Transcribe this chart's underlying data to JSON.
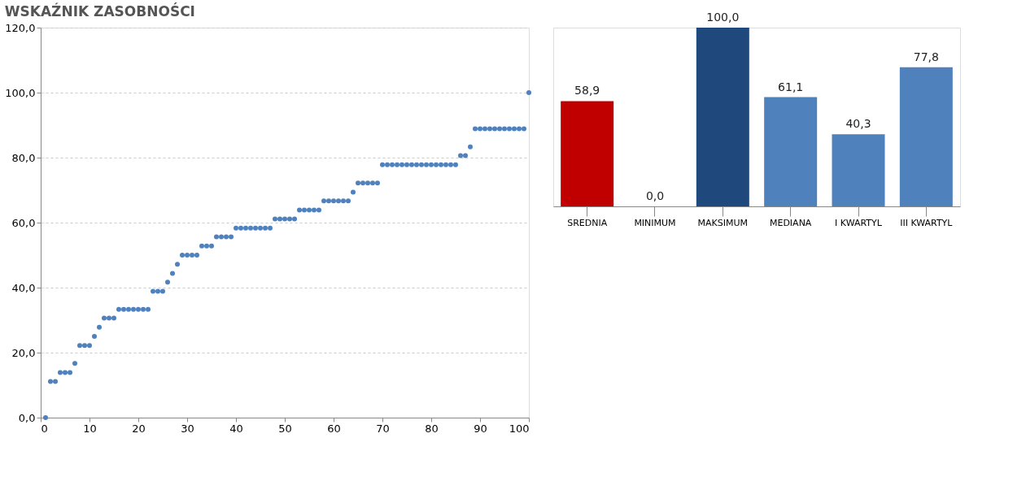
{
  "chart_data": [
    {
      "type": "scatter",
      "title": "WSKAŹNIK ZASOBNOŚCI",
      "marker": "circle",
      "grid": "y",
      "series": [
        {
          "color": "#4f81bd",
          "x": [
            1,
            2,
            3,
            4,
            5,
            6,
            7,
            8,
            9,
            10,
            11,
            12,
            13,
            14,
            15,
            16,
            17,
            18,
            19,
            20,
            21,
            22,
            23,
            24,
            25,
            26,
            27,
            28,
            29,
            30,
            31,
            32,
            33,
            34,
            35,
            36,
            37,
            38,
            39,
            40,
            41,
            42,
            43,
            44,
            45,
            46,
            47,
            48,
            49,
            50,
            51,
            52,
            53,
            54,
            55,
            56,
            57,
            58,
            59,
            60,
            61,
            62,
            63,
            64,
            65,
            66,
            67,
            68,
            69,
            70,
            71,
            72,
            73,
            74,
            75,
            76,
            77,
            78,
            79,
            80,
            81,
            82,
            83,
            84,
            85,
            86,
            87,
            88,
            89,
            90,
            91,
            92,
            93,
            94,
            95,
            96,
            97,
            98,
            99,
            100
          ],
          "values": [
            0,
            11.1,
            11.1,
            13.9,
            13.9,
            13.9,
            16.7,
            22.2,
            22.2,
            22.2,
            25.0,
            27.8,
            30.6,
            30.6,
            30.6,
            33.3,
            33.3,
            33.3,
            33.3,
            33.3,
            33.3,
            33.3,
            38.9,
            38.9,
            38.9,
            41.7,
            44.4,
            47.2,
            50.0,
            50.0,
            50.0,
            50.0,
            52.8,
            52.8,
            52.8,
            55.6,
            55.6,
            55.6,
            55.6,
            58.3,
            58.3,
            58.3,
            58.3,
            58.3,
            58.3,
            58.3,
            58.3,
            61.1,
            61.1,
            61.1,
            61.1,
            61.1,
            63.9,
            63.9,
            63.9,
            63.9,
            63.9,
            66.7,
            66.7,
            66.7,
            66.7,
            66.7,
            66.7,
            69.4,
            72.2,
            72.2,
            72.2,
            72.2,
            72.2,
            77.8,
            77.8,
            77.8,
            77.8,
            77.8,
            77.8,
            77.8,
            77.8,
            77.8,
            77.8,
            77.8,
            77.8,
            77.8,
            77.8,
            77.8,
            77.8,
            80.6,
            80.6,
            83.3,
            88.9,
            88.9,
            88.9,
            88.9,
            88.9,
            88.9,
            88.9,
            88.9,
            88.9,
            88.9,
            88.9,
            100
          ]
        }
      ],
      "xlim": [
        0,
        100
      ],
      "xticks": [
        0,
        10,
        20,
        30,
        40,
        50,
        60,
        70,
        80,
        90,
        100
      ],
      "ylim": [
        0,
        120
      ],
      "yticks": [
        {
          "value": 0,
          "label": "0,0"
        },
        {
          "value": 20,
          "label": "20,0"
        },
        {
          "value": 40,
          "label": "40,0"
        },
        {
          "value": 60,
          "label": "60,0"
        },
        {
          "value": 80,
          "label": "80,0"
        },
        {
          "value": 100,
          "label": "100,0"
        },
        {
          "value": 120,
          "label": "120,0"
        }
      ]
    },
    {
      "type": "bar",
      "categories": [
        "SREDNIA",
        "MINIMUM",
        "MAKSIMUM",
        "MEDIANA",
        "I KWARTYL",
        "III KWARTYL"
      ],
      "values": [
        58.9,
        0.0,
        100.0,
        61.1,
        40.3,
        77.8
      ],
      "value_labels": [
        "58,9",
        "0,0",
        "100,0",
        "61,1",
        "40,3",
        "77,8"
      ],
      "colors": [
        "#c00000",
        "#4f81bd",
        "#1f497d",
        "#4f81bd",
        "#4f81bd",
        "#4f81bd"
      ]
    }
  ]
}
